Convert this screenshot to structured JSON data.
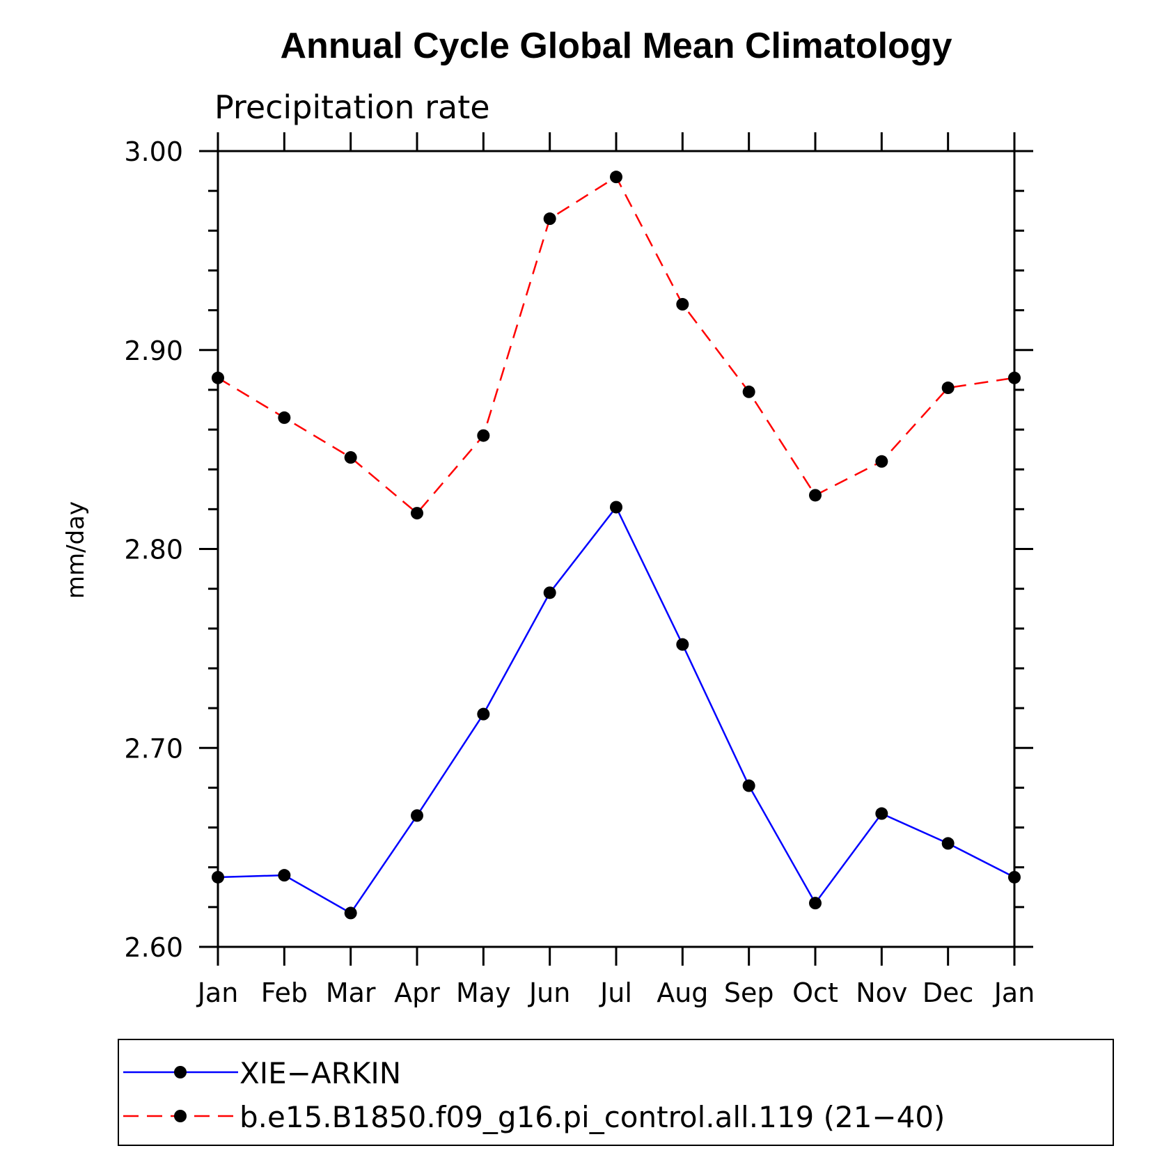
{
  "chart_data": {
    "type": "line",
    "title": "Annual Cycle Global Mean Climatology",
    "subtitle": "Precipitation rate",
    "xlabel": "",
    "ylabel": "mm/day",
    "categories": [
      "Jan",
      "Feb",
      "Mar",
      "Apr",
      "May",
      "Jun",
      "Jul",
      "Aug",
      "Sep",
      "Oct",
      "Nov",
      "Dec",
      "Jan"
    ],
    "ylim": [
      2.6,
      3.0
    ],
    "yticks": [
      "2.60",
      "2.70",
      "2.80",
      "2.90",
      "3.00"
    ],
    "grid": false,
    "legend_position": "bottom",
    "series": [
      {
        "name": "XIE−ARKIN",
        "color": "#0000ff",
        "line_style": "solid",
        "marker": "filled-circle",
        "values": [
          2.635,
          2.636,
          2.617,
          2.666,
          2.717,
          2.778,
          2.821,
          2.752,
          2.681,
          2.622,
          2.667,
          2.652,
          2.635
        ]
      },
      {
        "name": "b.e15.B1850.f09_g16.pi_control.all.119 (21−40)",
        "color": "#ff0000",
        "line_style": "dashed",
        "marker": "filled-circle",
        "values": [
          2.886,
          2.866,
          2.846,
          2.818,
          2.857,
          2.966,
          2.987,
          2.923,
          2.879,
          2.827,
          2.844,
          2.881,
          2.886
        ]
      }
    ]
  }
}
